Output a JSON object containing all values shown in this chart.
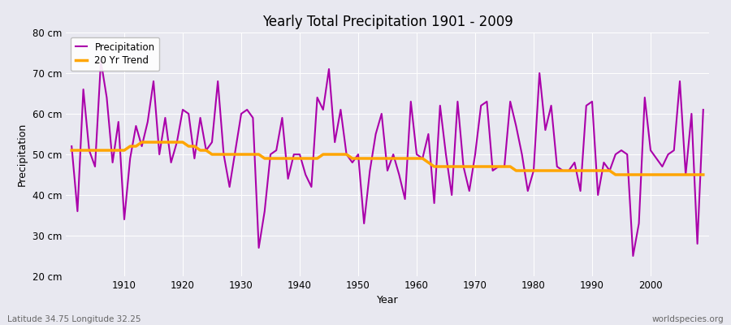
{
  "title": "Yearly Total Precipitation 1901 - 2009",
  "ylabel": "Precipitation",
  "xlabel": "Year",
  "bottom_left": "Latitude 34.75 Longitude 32.25",
  "bottom_right": "worldspecies.org",
  "legend_precipitation": "Precipitation",
  "legend_trend": "20 Yr Trend",
  "precip_color": "#aa00aa",
  "trend_color": "#ffa500",
  "bg_color": "#e8e8f0",
  "plot_bg_color": "#e8e8f0",
  "ylim": [
    20,
    80
  ],
  "yticks": [
    20,
    30,
    40,
    50,
    60,
    70,
    80
  ],
  "ytick_labels": [
    "20 cm",
    "30 cm",
    "40 cm",
    "50 cm",
    "60 cm",
    "70 cm",
    "80 cm"
  ],
  "years": [
    1901,
    1902,
    1903,
    1904,
    1905,
    1906,
    1907,
    1908,
    1909,
    1910,
    1911,
    1912,
    1913,
    1914,
    1915,
    1916,
    1917,
    1918,
    1919,
    1920,
    1921,
    1922,
    1923,
    1924,
    1925,
    1926,
    1927,
    1928,
    1929,
    1930,
    1931,
    1932,
    1933,
    1934,
    1935,
    1936,
    1937,
    1938,
    1939,
    1940,
    1941,
    1942,
    1943,
    1944,
    1945,
    1946,
    1947,
    1948,
    1949,
    1950,
    1951,
    1952,
    1953,
    1954,
    1955,
    1956,
    1957,
    1958,
    1959,
    1960,
    1961,
    1962,
    1963,
    1964,
    1965,
    1966,
    1967,
    1968,
    1969,
    1970,
    1971,
    1972,
    1973,
    1974,
    1975,
    1976,
    1977,
    1978,
    1979,
    1980,
    1981,
    1982,
    1983,
    1984,
    1985,
    1986,
    1987,
    1988,
    1989,
    1990,
    1991,
    1992,
    1993,
    1994,
    1995,
    1996,
    1997,
    1998,
    1999,
    2000,
    2001,
    2002,
    2003,
    2004,
    2005,
    2006,
    2007,
    2008,
    2009
  ],
  "precipitation": [
    52,
    36,
    66,
    51,
    47,
    73,
    64,
    48,
    58,
    34,
    49,
    57,
    52,
    58,
    68,
    50,
    59,
    48,
    53,
    61,
    60,
    49,
    59,
    51,
    53,
    68,
    50,
    42,
    51,
    60,
    61,
    59,
    27,
    36,
    50,
    51,
    59,
    44,
    50,
    50,
    45,
    42,
    64,
    61,
    71,
    53,
    61,
    50,
    48,
    50,
    33,
    46,
    55,
    60,
    46,
    50,
    45,
    39,
    63,
    50,
    49,
    55,
    38,
    62,
    50,
    40,
    63,
    47,
    41,
    50,
    62,
    63,
    46,
    47,
    47,
    63,
    57,
    50,
    41,
    46,
    70,
    56,
    62,
    47,
    46,
    46,
    48,
    41,
    62,
    63,
    40,
    48,
    46,
    50,
    51,
    50,
    25,
    33,
    64,
    51,
    49,
    47,
    50,
    51,
    68,
    45,
    60,
    28,
    61
  ],
  "trend": [
    51,
    51,
    51,
    51,
    51,
    51,
    51,
    51,
    51,
    51,
    52,
    52,
    53,
    53,
    53,
    53,
    53,
    53,
    53,
    53,
    52,
    52,
    51,
    51,
    50,
    50,
    50,
    50,
    50,
    50,
    50,
    50,
    50,
    49,
    49,
    49,
    49,
    49,
    49,
    49,
    49,
    49,
    49,
    50,
    50,
    50,
    50,
    50,
    49,
    49,
    49,
    49,
    49,
    49,
    49,
    49,
    49,
    49,
    49,
    49,
    49,
    48,
    47,
    47,
    47,
    47,
    47,
    47,
    47,
    47,
    47,
    47,
    47,
    47,
    47,
    47,
    46,
    46,
    46,
    46,
    46,
    46,
    46,
    46,
    46,
    46,
    46,
    46,
    46,
    46,
    46,
    46,
    46,
    45,
    45,
    45,
    45,
    45,
    45,
    45,
    45,
    45,
    45,
    45,
    45,
    45,
    45,
    45,
    45
  ]
}
